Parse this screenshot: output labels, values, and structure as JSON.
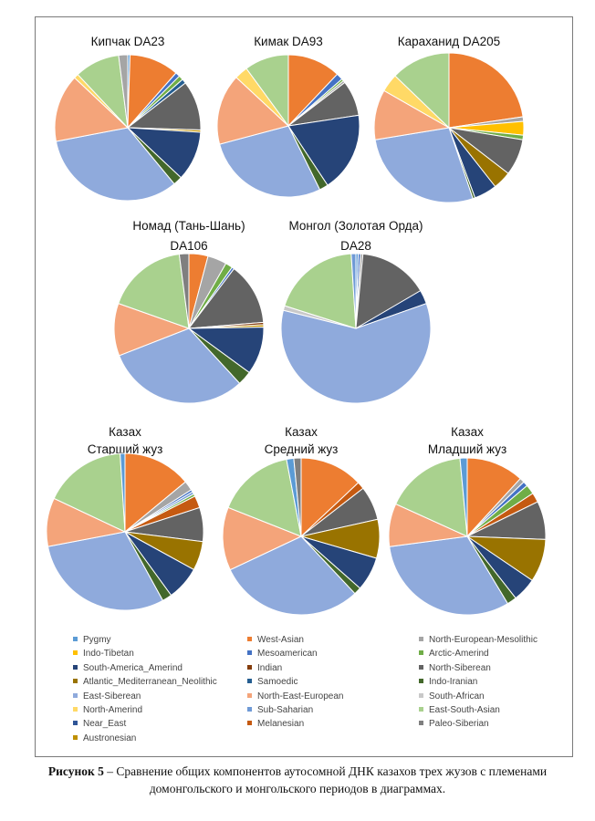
{
  "palette": {
    "Pygmy": "#5b9bd5",
    "West-Asian": "#ed7d31",
    "North-European-Mesolithic": "#a5a5a5",
    "Indo-Tibetan": "#ffc000",
    "Mesoamerican": "#4472c4",
    "Arctic-Amerind": "#70ad47",
    "South-America_Amerind": "#264478",
    "Indian": "#843c0c",
    "North-Siberean": "#636363",
    "Atlantic_Mediterranean_Neolithic": "#997300",
    "Samoedic": "#255e91",
    "Indo-Iranian": "#43682b",
    "East-Siberean": "#8faadc",
    "North-East-European": "#f4a47a",
    "South-African": "#c9c9c9",
    "North-Amerind": "#ffd966",
    "Sub-Saharian": "#6f9ad6",
    "East-South-Asian": "#a9d18e",
    "Near_East": "#2f5597",
    "Melanesian": "#c55a11",
    "Paleo-Siberian": "#7f7f7f",
    "Austronesian": "#bf9000"
  },
  "legend": {
    "items": [
      "Pygmy",
      "West-Asian",
      "North-European-Mesolithic",
      "Indo-Tibetan",
      "Mesoamerican",
      "Arctic-Amerind",
      "South-America_Amerind",
      "Indian",
      "North-Siberean",
      "Atlantic_Mediterranean_Neolithic",
      "Samoedic",
      "Indo-Iranian",
      "East-Siberean",
      "North-East-European",
      "South-African",
      "North-Amerind",
      "Sub-Saharian",
      "East-South-Asian",
      "Near_East",
      "Melanesian",
      "Paleo-Siberian",
      "Austronesian"
    ]
  },
  "chart_data": [
    {
      "type": "pie",
      "id": "kipchak",
      "title_lines": [
        "Кипчак DA23"
      ],
      "slices": [
        {
          "label": "Pygmy",
          "value": 0.5
        },
        {
          "label": "West-Asian",
          "value": 11
        },
        {
          "label": "Mesoamerican",
          "value": 1
        },
        {
          "label": "Arctic-Amerind",
          "value": 1
        },
        {
          "label": "Samoedic",
          "value": 1
        },
        {
          "label": "North-Siberean",
          "value": 11
        },
        {
          "label": "Austronesian",
          "value": 0.5
        },
        {
          "label": "South-America_Amerind",
          "value": 11
        },
        {
          "label": "Indo-Iranian",
          "value": 2
        },
        {
          "label": "East-Siberean",
          "value": 33
        },
        {
          "label": "North-East-European",
          "value": 15
        },
        {
          "label": "North-Amerind",
          "value": 1
        },
        {
          "label": "East-South-Asian",
          "value": 10
        },
        {
          "label": "North-European-Mesolithic",
          "value": 2
        }
      ]
    },
    {
      "type": "pie",
      "id": "kimak",
      "title_lines": [
        "Кимак DA93"
      ],
      "slices": [
        {
          "label": "West-Asian",
          "value": 12
        },
        {
          "label": "Mesoamerican",
          "value": 1.5
        },
        {
          "label": "Arctic-Amerind",
          "value": 0.5
        },
        {
          "label": "North-European-Mesolithic",
          "value": 0.5
        },
        {
          "label": "North-Siberean",
          "value": 8
        },
        {
          "label": "South-America_Amerind",
          "value": 18
        },
        {
          "label": "Indo-Iranian",
          "value": 2
        },
        {
          "label": "East-Siberean",
          "value": 28
        },
        {
          "label": "North-East-European",
          "value": 16
        },
        {
          "label": "North-Amerind",
          "value": 3
        },
        {
          "label": "East-South-Asian",
          "value": 10
        }
      ]
    },
    {
      "type": "pie",
      "id": "karakhanid",
      "title_lines": [
        "Караханид  DA205"
      ],
      "slices": [
        {
          "label": "West-Asian",
          "value": 23
        },
        {
          "label": "North-European-Mesolithic",
          "value": 1
        },
        {
          "label": "Indo-Tibetan",
          "value": 3
        },
        {
          "label": "Arctic-Amerind",
          "value": 1
        },
        {
          "label": "North-Siberean",
          "value": 8
        },
        {
          "label": "Atlantic_Mediterranean_Neolithic",
          "value": 4
        },
        {
          "label": "South-America_Amerind",
          "value": 5
        },
        {
          "label": "Indo-Iranian",
          "value": 0.5
        },
        {
          "label": "East-Siberean",
          "value": 28
        },
        {
          "label": "North-East-European",
          "value": 11
        },
        {
          "label": "North-Amerind",
          "value": 4
        },
        {
          "label": "East-South-Asian",
          "value": 13
        }
      ]
    },
    {
      "type": "pie",
      "id": "nomad",
      "title_lines": [
        "Номад (Тань-Шань)",
        "DA106"
      ],
      "slices": [
        {
          "label": "West-Asian",
          "value": 4
        },
        {
          "label": "North-European-Mesolithic",
          "value": 4
        },
        {
          "label": "Arctic-Amerind",
          "value": 1.5
        },
        {
          "label": "Mesoamerican",
          "value": 0.5
        },
        {
          "label": "North-Siberean",
          "value": 13
        },
        {
          "label": "Indian",
          "value": 0.5
        },
        {
          "label": "Austronesian",
          "value": 0.5
        },
        {
          "label": "South-America_Amerind",
          "value": 10
        },
        {
          "label": "Indo-Iranian",
          "value": 3
        },
        {
          "label": "East-Siberean",
          "value": 30
        },
        {
          "label": "North-East-European",
          "value": 11
        },
        {
          "label": "East-South-Asian",
          "value": 17
        },
        {
          "label": "Paleo-Siberian",
          "value": 2
        }
      ]
    },
    {
      "type": "pie",
      "id": "mongol",
      "title_lines": [
        "Монгол (Золотая Орда)",
        "DA28"
      ],
      "slices": [
        {
          "label": "Pygmy",
          "value": 0.5
        },
        {
          "label": "Mesoamerican",
          "value": 0.5
        },
        {
          "label": "North-European-Mesolithic",
          "value": 0.5
        },
        {
          "label": "North-Siberean",
          "value": 15
        },
        {
          "label": "South-America_Amerind",
          "value": 3
        },
        {
          "label": "East-Siberean",
          "value": 59
        },
        {
          "label": "South-African",
          "value": 1
        },
        {
          "label": "East-South-Asian",
          "value": 19
        },
        {
          "label": "Sub-Saharian",
          "value": 1
        }
      ]
    },
    {
      "type": "pie",
      "id": "senior",
      "title_lines": [
        "Казах",
        "Старший жуз"
      ],
      "slices": [
        {
          "label": "West-Asian",
          "value": 14
        },
        {
          "label": "North-European-Mesolithic",
          "value": 2
        },
        {
          "label": "Mesoamerican",
          "value": 0.5
        },
        {
          "label": "Sub-Saharian",
          "value": 0.5
        },
        {
          "label": "Arctic-Amerind",
          "value": 0.5
        },
        {
          "label": "Melanesian",
          "value": 2.5
        },
        {
          "label": "North-Siberean",
          "value": 7
        },
        {
          "label": "Atlantic_Mediterranean_Neolithic",
          "value": 6
        },
        {
          "label": "South-America_Amerind",
          "value": 7
        },
        {
          "label": "Indo-Iranian",
          "value": 2
        },
        {
          "label": "East-Siberean",
          "value": 30
        },
        {
          "label": "North-East-European",
          "value": 10
        },
        {
          "label": "East-South-Asian",
          "value": 17
        },
        {
          "label": "Pygmy",
          "value": 1
        }
      ]
    },
    {
      "type": "pie",
      "id": "middle",
      "title_lines": [
        "Казах",
        "Средний жуз"
      ],
      "slices": [
        {
          "label": "West-Asian",
          "value": 13
        },
        {
          "label": "Melanesian",
          "value": 1.5
        },
        {
          "label": "North-Siberean",
          "value": 7
        },
        {
          "label": "Atlantic_Mediterranean_Neolithic",
          "value": 8
        },
        {
          "label": "South-America_Amerind",
          "value": 7
        },
        {
          "label": "Indo-Iranian",
          "value": 1.5
        },
        {
          "label": "East-Siberean",
          "value": 30
        },
        {
          "label": "North-East-European",
          "value": 13
        },
        {
          "label": "East-South-Asian",
          "value": 16
        },
        {
          "label": "Pygmy",
          "value": 1.5
        },
        {
          "label": "Paleo-Siberian",
          "value": 1.5
        }
      ]
    },
    {
      "type": "pie",
      "id": "junior",
      "title_lines": [
        "Казах",
        "Младший жуз"
      ],
      "slices": [
        {
          "label": "West-Asian",
          "value": 12
        },
        {
          "label": "North-European-Mesolithic",
          "value": 1
        },
        {
          "label": "Mesoamerican",
          "value": 1
        },
        {
          "label": "Arctic-Amerind",
          "value": 2
        },
        {
          "label": "Melanesian",
          "value": 2
        },
        {
          "label": "North-Siberean",
          "value": 8
        },
        {
          "label": "Atlantic_Mediterranean_Neolithic",
          "value": 9
        },
        {
          "label": "South-America_Amerind",
          "value": 5
        },
        {
          "label": "Indo-Iranian",
          "value": 2
        },
        {
          "label": "East-Siberean",
          "value": 32
        },
        {
          "label": "North-East-European",
          "value": 9
        },
        {
          "label": "East-South-Asian",
          "value": 17
        },
        {
          "label": "Pygmy",
          "value": 1.5
        }
      ]
    }
  ],
  "caption": {
    "label": "Рисунок 5",
    "text": " – Сравнение общих компонентов аутосомной ДНК казахов трех жузов с племенами домонгольского и монгольского периодов в диаграммах."
  }
}
